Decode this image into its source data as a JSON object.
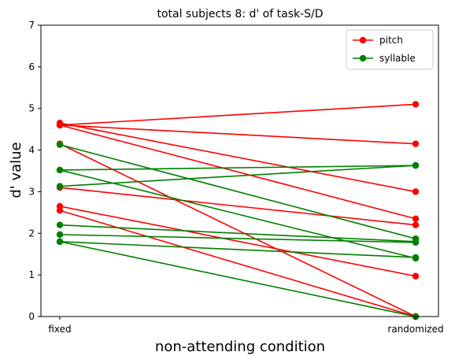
{
  "chart_data": {
    "type": "line",
    "title": "total subjects 8: d' of task-S/D",
    "xlabel": "non-attending condition",
    "ylabel": "d' value",
    "categories": [
      "fixed",
      "randomized"
    ],
    "ylim": [
      0,
      7
    ],
    "yticks": [
      0,
      1,
      2,
      3,
      4,
      5,
      6,
      7
    ],
    "grid": false,
    "legend": {
      "placement": "top-right",
      "entries": [
        {
          "label": "pitch",
          "color": "#ff0000"
        },
        {
          "label": "syllable",
          "color": "#008000"
        }
      ]
    },
    "groups": [
      {
        "label": "pitch",
        "color": "#ff0000",
        "lines": [
          [
            4.6,
            5.1
          ],
          [
            4.6,
            4.15
          ],
          [
            4.65,
            3.0
          ],
          [
            4.6,
            2.35
          ],
          [
            3.1,
            2.2
          ],
          [
            2.65,
            0.97
          ],
          [
            2.55,
            0.0
          ],
          [
            4.15,
            0.0
          ]
        ]
      },
      {
        "label": "syllable",
        "color": "#008000",
        "lines": [
          [
            3.52,
            3.63
          ],
          [
            3.13,
            3.63
          ],
          [
            4.13,
            1.87
          ],
          [
            3.52,
            1.4
          ],
          [
            2.2,
            1.8
          ],
          [
            1.97,
            1.78
          ],
          [
            1.8,
            1.42
          ],
          [
            1.8,
            0.0
          ]
        ]
      }
    ]
  }
}
